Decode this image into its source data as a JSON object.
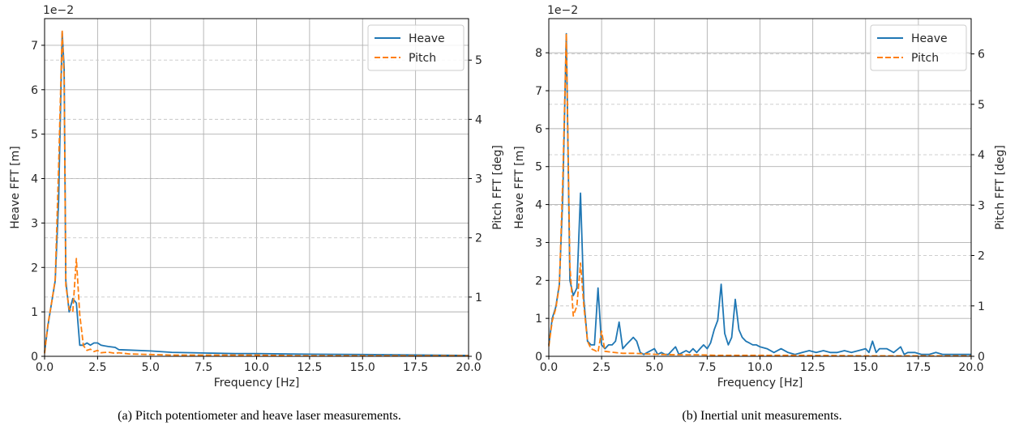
{
  "captions": [
    "(a) Pitch potentiometer and heave laser measurements.",
    "(b) Inertial unit measurements."
  ],
  "colors": {
    "heave": "#1f77b4",
    "pitch": "#ff7f0e",
    "grid_major": "#b0b0b0",
    "grid_minor": "#c8c8c8"
  },
  "chart_data": [
    {
      "type": "line",
      "xlabel": "Frequency [Hz]",
      "ylabel": "Heave FFT [m]",
      "y2label": "Pitch FFT [deg]",
      "y_exponent": "1e−2",
      "xlim": [
        0,
        20
      ],
      "ylim": [
        0,
        7.6
      ],
      "y2lim": [
        0,
        5.7
      ],
      "xticks": [
        "0.0",
        "2.5",
        "5.0",
        "7.5",
        "10.0",
        "12.5",
        "15.0",
        "17.5",
        "20.0"
      ],
      "yticks": [
        "0",
        "1",
        "2",
        "3",
        "4",
        "5",
        "6",
        "7"
      ],
      "y2ticks": [
        "0",
        "1",
        "2",
        "3",
        "4",
        "5"
      ],
      "grid": true,
      "legend": {
        "position": "top-right",
        "entries": [
          "Heave",
          "Pitch"
        ]
      },
      "series": [
        {
          "name": "Heave",
          "axis": "left",
          "style": "solid",
          "x": [
            0,
            0.16,
            0.33,
            0.5,
            0.66,
            0.83,
            0.92,
            1.0,
            1.16,
            1.33,
            1.5,
            1.66,
            1.83,
            2.0,
            2.16,
            2.33,
            2.5,
            2.66,
            3.0,
            3.33,
            3.5,
            4.0,
            5.0,
            6.0,
            7.0,
            8.0,
            9.0,
            10.0,
            12.0,
            15.0,
            20.0
          ],
          "y": [
            0.1,
            0.7,
            1.2,
            1.7,
            3.5,
            7.3,
            6.5,
            1.7,
            1.0,
            1.3,
            1.2,
            0.25,
            0.25,
            0.3,
            0.25,
            0.3,
            0.3,
            0.25,
            0.22,
            0.2,
            0.15,
            0.14,
            0.12,
            0.09,
            0.08,
            0.07,
            0.06,
            0.06,
            0.05,
            0.04,
            0.02
          ]
        },
        {
          "name": "Pitch",
          "axis": "right",
          "style": "dashed",
          "x": [
            0,
            0.16,
            0.33,
            0.5,
            0.66,
            0.83,
            0.92,
            1.0,
            1.16,
            1.33,
            1.5,
            1.66,
            1.83,
            2.0,
            2.16,
            2.33,
            2.5,
            2.66,
            3.0,
            3.33,
            3.5,
            4.0,
            5.0,
            6.0,
            7.0,
            8.0,
            10.0,
            12.0,
            15.0,
            20.0
          ],
          "y": [
            0.05,
            0.55,
            0.9,
            1.3,
            3.2,
            5.5,
            4.7,
            1.2,
            0.8,
            0.75,
            1.65,
            0.7,
            0.18,
            0.1,
            0.12,
            0.08,
            0.1,
            0.06,
            0.07,
            0.05,
            0.06,
            0.04,
            0.03,
            0.02,
            0.02,
            0.02,
            0.02,
            0.01,
            0.01,
            0.01
          ]
        }
      ]
    },
    {
      "type": "line",
      "xlabel": "Frequency [Hz]",
      "ylabel": "Heave FFT [m]",
      "y2label": "Pitch FFT [deg]",
      "y_exponent": "1e−2",
      "xlim": [
        0,
        20
      ],
      "ylim": [
        0,
        8.9
      ],
      "y2lim": [
        0,
        6.7
      ],
      "xticks": [
        "0.0",
        "2.5",
        "5.0",
        "7.5",
        "10.0",
        "12.5",
        "15.0",
        "17.5",
        "20.0"
      ],
      "yticks": [
        "0",
        "1",
        "2",
        "3",
        "4",
        "5",
        "6",
        "7",
        "8"
      ],
      "y2ticks": [
        "0",
        "1",
        "2",
        "3",
        "4",
        "5",
        "6"
      ],
      "grid": true,
      "legend": {
        "position": "top-right",
        "entries": [
          "Heave",
          "Pitch"
        ]
      },
      "series": [
        {
          "name": "Heave",
          "axis": "left",
          "style": "solid",
          "x": [
            0,
            0.16,
            0.33,
            0.5,
            0.66,
            0.83,
            1.0,
            1.16,
            1.33,
            1.5,
            1.66,
            1.83,
            2.0,
            2.16,
            2.33,
            2.5,
            2.66,
            2.83,
            3.0,
            3.16,
            3.33,
            3.5,
            3.66,
            4.0,
            4.16,
            4.33,
            4.5,
            4.66,
            5.0,
            5.16,
            5.33,
            5.5,
            5.66,
            6.0,
            6.16,
            6.33,
            6.5,
            6.66,
            6.83,
            7.0,
            7.16,
            7.33,
            7.5,
            7.66,
            7.83,
            8.0,
            8.16,
            8.33,
            8.5,
            8.66,
            8.83,
            9.0,
            9.16,
            9.33,
            9.5,
            9.66,
            9.83,
            10.0,
            10.33,
            10.66,
            11.0,
            11.33,
            11.66,
            12.0,
            12.33,
            12.66,
            13.0,
            13.33,
            13.66,
            14.0,
            14.33,
            14.66,
            15.0,
            15.16,
            15.33,
            15.5,
            15.66,
            16.0,
            16.33,
            16.66,
            16.83,
            17.0,
            17.33,
            17.66,
            18.0,
            18.33,
            18.66,
            19.0,
            19.33,
            19.66,
            20.0
          ],
          "y": [
            0.3,
            1.0,
            1.3,
            1.9,
            4.2,
            8.5,
            2.0,
            1.6,
            1.8,
            4.3,
            1.5,
            0.4,
            0.3,
            0.3,
            1.8,
            0.3,
            0.2,
            0.3,
            0.3,
            0.4,
            0.9,
            0.2,
            0.3,
            0.5,
            0.4,
            0.1,
            0.05,
            0.1,
            0.2,
            0.05,
            0.1,
            0.05,
            0.05,
            0.25,
            0.05,
            0.1,
            0.15,
            0.1,
            0.2,
            0.1,
            0.2,
            0.3,
            0.2,
            0.35,
            0.7,
            0.95,
            1.9,
            0.6,
            0.3,
            0.5,
            1.5,
            0.7,
            0.5,
            0.4,
            0.35,
            0.3,
            0.3,
            0.25,
            0.2,
            0.1,
            0.2,
            0.1,
            0.05,
            0.1,
            0.15,
            0.1,
            0.15,
            0.1,
            0.1,
            0.15,
            0.1,
            0.15,
            0.2,
            0.1,
            0.4,
            0.1,
            0.2,
            0.2,
            0.1,
            0.25,
            0.05,
            0.1,
            0.1,
            0.05,
            0.05,
            0.1,
            0.05,
            0.05,
            0.05,
            0.05,
            0.05
          ]
        },
        {
          "name": "Pitch",
          "axis": "right",
          "style": "dashed",
          "x": [
            0,
            0.16,
            0.33,
            0.5,
            0.66,
            0.83,
            1.0,
            1.16,
            1.33,
            1.5,
            1.66,
            1.83,
            2.0,
            2.16,
            2.33,
            2.5,
            2.66,
            3.0,
            3.5,
            4.0,
            4.5,
            5.0,
            6.0,
            7.0,
            8.0,
            10.0,
            12.0,
            15.0,
            20.0
          ],
          "y": [
            0.2,
            0.7,
            0.95,
            1.4,
            3.5,
            6.4,
            1.8,
            0.8,
            1.0,
            1.85,
            1.0,
            0.3,
            0.15,
            0.12,
            0.08,
            0.5,
            0.1,
            0.08,
            0.06,
            0.06,
            0.05,
            0.04,
            0.03,
            0.03,
            0.02,
            0.02,
            0.02,
            0.01,
            0.01
          ]
        }
      ]
    }
  ]
}
